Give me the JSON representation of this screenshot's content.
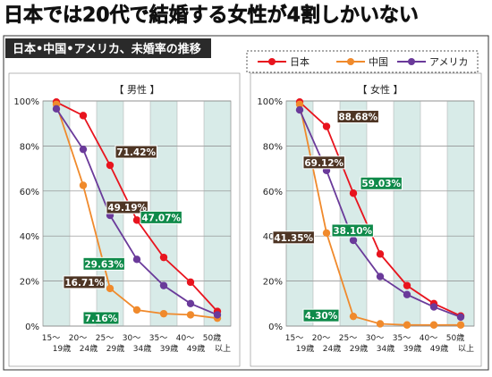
{
  "headline": "日本では20代で結婚する女性が4割しかいない",
  "subtitle": "日本•中国•アメリカ、未婚率の推移",
  "colors": {
    "japan": "#e8141e",
    "china": "#f08a2c",
    "usa": "#6a3a9a",
    "band": "#d8ebe8",
    "label_green": "#0f8a4a",
    "label_brown": "#4e3524"
  },
  "legend": [
    "日本",
    "中国",
    "アメリカ"
  ],
  "chart_data": [
    {
      "type": "line",
      "title": "【 男性 】",
      "categories": [
        [
          "15〜",
          "19歳"
        ],
        [
          "20〜",
          "24歳"
        ],
        [
          "25〜",
          "29歳"
        ],
        [
          "30〜",
          "34歳"
        ],
        [
          "35〜",
          "39歳"
        ],
        [
          "40〜",
          "49歳"
        ],
        [
          "50歳",
          "以上"
        ]
      ],
      "yticks": [
        "0%",
        "20%",
        "40%",
        "60%",
        "80%",
        "100%"
      ],
      "ylim": [
        0,
        100
      ],
      "series": [
        {
          "name": "日本",
          "values": [
            99.5,
            93.5,
            71.42,
            47.07,
            30.5,
            19.5,
            6.5
          ]
        },
        {
          "name": "中国",
          "values": [
            98.5,
            62.5,
            16.71,
            7.16,
            5.5,
            5.0,
            3.5
          ]
        },
        {
          "name": "アメリカ",
          "values": [
            96.5,
            78.5,
            49.19,
            29.63,
            18.0,
            10.0,
            5.0
          ]
        }
      ],
      "annotations": [
        {
          "text": "71.42%",
          "series": 0,
          "index": 2,
          "style": "brown"
        },
        {
          "text": "49.19%",
          "series": 2,
          "index": 2,
          "style": "brown"
        },
        {
          "text": "47.07%",
          "series": 0,
          "index": 3,
          "style": "green"
        },
        {
          "text": "29.63%",
          "series": 2,
          "index": 3,
          "style": "green"
        },
        {
          "text": "16.71%",
          "series": 1,
          "index": 2,
          "style": "brown"
        },
        {
          "text": "7.16%",
          "series": 1,
          "index": 3,
          "style": "green"
        }
      ]
    },
    {
      "type": "line",
      "title": "【 女性 】",
      "categories": [
        [
          "15〜",
          "19歳"
        ],
        [
          "20〜",
          "24歳"
        ],
        [
          "25〜",
          "29歳"
        ],
        [
          "30〜",
          "34歳"
        ],
        [
          "35〜",
          "39歳"
        ],
        [
          "40〜",
          "49歳"
        ],
        [
          "50歳",
          "以上"
        ]
      ],
      "yticks": [
        "0%",
        "20%",
        "40%",
        "60%",
        "80%",
        "100%"
      ],
      "ylim": [
        0,
        100
      ],
      "series": [
        {
          "name": "日本",
          "values": [
            99.5,
            88.68,
            59.03,
            32.0,
            18.0,
            10.0,
            4.5
          ]
        },
        {
          "name": "中国",
          "values": [
            98.5,
            41.35,
            4.3,
            1.0,
            0.5,
            0.5,
            0.5
          ]
        },
        {
          "name": "アメリカ",
          "values": [
            96.0,
            69.12,
            38.1,
            22.0,
            14.0,
            8.5,
            4.0
          ]
        }
      ],
      "annotations": [
        {
          "text": "88.68%",
          "series": 0,
          "index": 1,
          "style": "brown"
        },
        {
          "text": "69.12%",
          "series": 2,
          "index": 1,
          "style": "brown"
        },
        {
          "text": "59.03%",
          "series": 0,
          "index": 2,
          "style": "green"
        },
        {
          "text": "38.10%",
          "series": 2,
          "index": 2,
          "style": "green"
        },
        {
          "text": "41.35%",
          "series": 1,
          "index": 1,
          "style": "brown"
        },
        {
          "text": "4.30%",
          "series": 1,
          "index": 2,
          "style": "green"
        }
      ]
    }
  ]
}
